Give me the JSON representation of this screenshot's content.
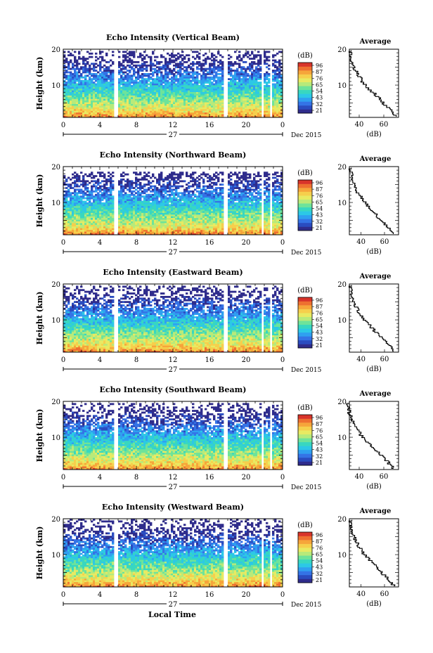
{
  "figure": {
    "xlabel_bottom": "Local Time",
    "date_label": "Dec 2015",
    "day_label": "27",
    "colorbar_unit": "(dB)",
    "avg_title": "Average",
    "avg_xlabel": "(dB)",
    "ylabel": "Height (km)"
  },
  "colors": {
    "scale": [
      "#2f2c8c",
      "#2a4cc0",
      "#3473e6",
      "#2fa0f0",
      "#2cc8e6",
      "#38d7c0",
      "#6ee39a",
      "#b8ea7a",
      "#e8ea62",
      "#f6cf4c",
      "#f6a53a",
      "#ee7030",
      "#d8342a"
    ]
  },
  "chart_data": [
    {
      "type": "heatmap",
      "title": "Echo Intensity (Vertical Beam)",
      "ylabel": "Height (km)",
      "xticks": [
        "0",
        "4",
        "8",
        "12",
        "16",
        "20",
        "0"
      ],
      "xlim": [
        0,
        24
      ],
      "ylim": [
        1,
        20
      ],
      "yticks": [
        "10",
        "20"
      ],
      "colorbar_ticks": [
        "96",
        "87",
        "76",
        "65",
        "54",
        "43",
        "32",
        "21"
      ],
      "colorbar_range": [
        21,
        96
      ],
      "gaps_hours": [
        [
          5.5,
          5.9
        ],
        [
          17.6,
          17.9
        ],
        [
          21.7,
          22.0
        ],
        [
          22.6,
          22.9
        ]
      ],
      "profile_top_km": 18,
      "average": {
        "title": "Average",
        "xlabel": "(dB)",
        "xticks": [
          "40",
          "60"
        ],
        "xlim": [
          32,
          72
        ],
        "ylim": [
          1,
          20
        ],
        "heights_km": [
          1.5,
          3,
          5,
          7,
          9,
          11,
          13,
          15,
          17,
          19.5
        ],
        "values_db": [
          70,
          66,
          60,
          55,
          48,
          43,
          39,
          36,
          34,
          33
        ]
      }
    },
    {
      "type": "heatmap",
      "title": "Echo Intensity (Northward Beam)",
      "ylabel": "Height (km)",
      "xticks": [
        "0",
        "4",
        "8",
        "12",
        "16",
        "20",
        "0"
      ],
      "xlim": [
        0,
        24
      ],
      "ylim": [
        1,
        20
      ],
      "yticks": [
        "10",
        "20"
      ],
      "colorbar_ticks": [
        "96",
        "87",
        "76",
        "65",
        "54",
        "43",
        "32",
        "21"
      ],
      "colorbar_range": [
        21,
        96
      ],
      "gaps_hours": [
        [
          5.5,
          5.9
        ],
        [
          17.6,
          17.9
        ],
        [
          21.7,
          22.0
        ],
        [
          22.6,
          22.9
        ]
      ],
      "profile_top_km": 17,
      "average": {
        "title": "Average",
        "xlabel": "(dB)",
        "xticks": [
          "40",
          "60"
        ],
        "xlim": [
          30,
          72
        ],
        "ylim": [
          1,
          20
        ],
        "heights_km": [
          1.5,
          3,
          5,
          7,
          9,
          11,
          13,
          15,
          17,
          19.5
        ],
        "values_db": [
          68,
          64,
          58,
          52,
          46,
          41,
          37,
          34,
          32,
          31
        ]
      }
    },
    {
      "type": "heatmap",
      "title": "Echo Intensity (Eastward Beam)",
      "ylabel": "Height (km)",
      "xticks": [
        "0",
        "4",
        "8",
        "12",
        "16",
        "20",
        "0"
      ],
      "xlim": [
        0,
        24
      ],
      "ylim": [
        1,
        20
      ],
      "yticks": [
        "10",
        "20"
      ],
      "colorbar_ticks": [
        "96",
        "87",
        "76",
        "65",
        "54",
        "43",
        "32",
        "21"
      ],
      "colorbar_range": [
        21,
        96
      ],
      "gaps_hours": [
        [
          5.5,
          5.9
        ],
        [
          17.6,
          17.9
        ],
        [
          21.7,
          22.0
        ],
        [
          22.6,
          22.9
        ]
      ],
      "profile_top_km": 18,
      "average": {
        "title": "Average",
        "xlabel": "(dB)",
        "xticks": [
          "40",
          "60"
        ],
        "xlim": [
          30,
          72
        ],
        "ylim": [
          1,
          20
        ],
        "heights_km": [
          1.5,
          3,
          5,
          7,
          9,
          11,
          13,
          15,
          17,
          19.5
        ],
        "values_db": [
          68,
          64,
          58,
          52,
          46,
          41,
          37,
          34,
          32,
          31
        ]
      }
    },
    {
      "type": "heatmap",
      "title": "Echo Intensity (Southward Beam)",
      "ylabel": "Height (km)",
      "xticks": [
        "0",
        "4",
        "8",
        "12",
        "16",
        "20",
        "0"
      ],
      "xlim": [
        0,
        24
      ],
      "ylim": [
        1,
        20
      ],
      "yticks": [
        "10",
        "20"
      ],
      "colorbar_ticks": [
        "96",
        "87",
        "76",
        "65",
        "54",
        "43",
        "32",
        "21"
      ],
      "colorbar_range": [
        21,
        96
      ],
      "gaps_hours": [
        [
          5.5,
          5.9
        ],
        [
          17.6,
          17.9
        ],
        [
          21.7,
          22.0
        ],
        [
          22.6,
          22.9
        ]
      ],
      "profile_top_km": 18,
      "average": {
        "title": "Average",
        "xlabel": "(dB)",
        "xticks": [
          "40",
          "60"
        ],
        "xlim": [
          32,
          72
        ],
        "ylim": [
          1,
          20
        ],
        "heights_km": [
          1.5,
          3,
          5,
          7,
          9,
          11,
          13,
          15,
          17,
          19.5
        ],
        "values_db": [
          68,
          64,
          58,
          52,
          46,
          41,
          37,
          34,
          32,
          31
        ]
      }
    },
    {
      "type": "heatmap",
      "title": "Echo Intensity (Westward Beam)",
      "ylabel": "Height (km)",
      "xticks": [
        "0",
        "4",
        "8",
        "12",
        "16",
        "20",
        "0"
      ],
      "xlim": [
        0,
        24
      ],
      "ylim": [
        1,
        20
      ],
      "yticks": [
        "10",
        "20"
      ],
      "colorbar_ticks": [
        "96",
        "87",
        "76",
        "65",
        "54",
        "43",
        "32",
        "21"
      ],
      "colorbar_range": [
        21,
        96
      ],
      "gaps_hours": [
        [
          5.5,
          5.9
        ],
        [
          17.6,
          17.9
        ],
        [
          21.7,
          22.0
        ],
        [
          22.6,
          22.9
        ]
      ],
      "profile_top_km": 19,
      "average": {
        "title": "Average",
        "xlabel": "(dB)",
        "xticks": [
          "40",
          "60"
        ],
        "xlim": [
          30,
          72
        ],
        "ylim": [
          1,
          20
        ],
        "heights_km": [
          1.5,
          3,
          5,
          7,
          9,
          11,
          13,
          15,
          17,
          19.5
        ],
        "values_db": [
          68,
          64,
          58,
          52,
          46,
          41,
          37,
          34,
          32,
          31
        ]
      }
    }
  ]
}
